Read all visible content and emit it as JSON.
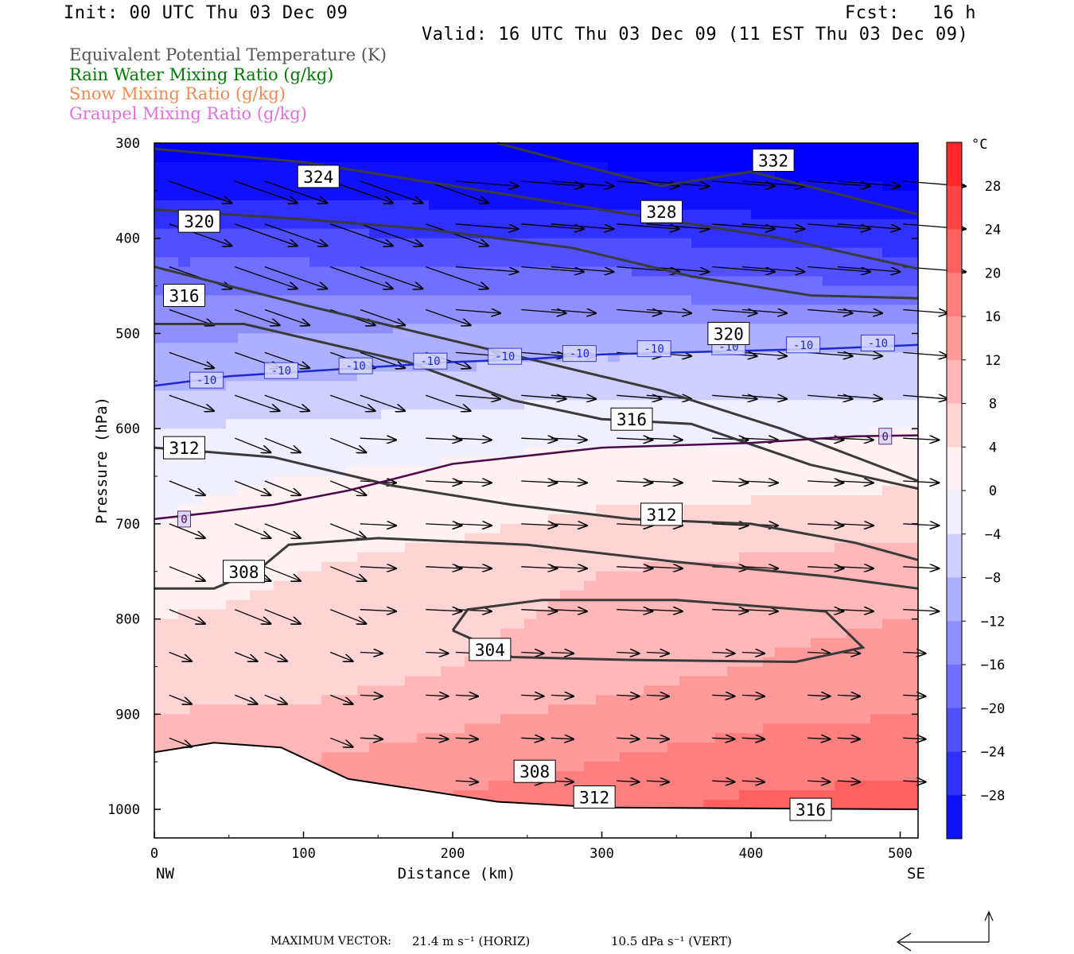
{
  "header": {
    "init": "Init: 00 UTC Thu 03 Dec 09",
    "fcst": "Fcst:   16 h",
    "valid": "Valid: 16 UTC Thu 03 Dec 09 (11 EST Thu 03 Dec 09)"
  },
  "legend": [
    {
      "text": "Equivalent Potential Temperature (K)",
      "color": "#555555"
    },
    {
      "text": "Rain Water Mixing Ratio (g/kg)",
      "color": "#007a00"
    },
    {
      "text": "Snow Mixing Ratio (g/kg)",
      "color": "#f08a50"
    },
    {
      "text": "Graupel Mixing Ratio (g/kg)",
      "color": "#e070e0"
    }
  ],
  "footer": {
    "max_vector_label": "MAXIMUM VECTOR:",
    "horiz": "21.4 m s⁻¹ (HORIZ)",
    "vert": "10.5 dPa s⁻¹ (VERT)"
  },
  "chart_data": {
    "type": "heatmap",
    "xlabel": "Distance (km)",
    "ylabel": "Pressure (hPa)",
    "xlim": [
      0,
      512
    ],
    "ylim": [
      1030,
      300
    ],
    "x_ticks": [
      0,
      100,
      200,
      300,
      400,
      500
    ],
    "y_ticks": [
      300,
      400,
      500,
      600,
      700,
      800,
      900,
      1000
    ],
    "x_end_labels": {
      "left": "NW",
      "right": "SE"
    },
    "colorbar": {
      "unit": "°C",
      "ticks": [
        28,
        24,
        20,
        16,
        12,
        8,
        4,
        0,
        -4,
        -8,
        -12,
        -16,
        -20,
        -24,
        -28
      ],
      "range": [
        -32,
        32
      ]
    },
    "temperature_field": {
      "x": [
        0,
        100,
        200,
        300,
        400,
        512
      ],
      "pressure": [
        300,
        350,
        400,
        450,
        500,
        550,
        600,
        650,
        700,
        750,
        800,
        850,
        900,
        950,
        1000
      ],
      "values": [
        [
          -34,
          -34,
          -34,
          -34,
          -34,
          -34
        ],
        [
          -29,
          -29,
          -30,
          -30,
          -31,
          -32
        ],
        [
          -23,
          -23,
          -24,
          -24,
          -25,
          -26
        ],
        [
          -17,
          -17,
          -18,
          -18,
          -19,
          -20
        ],
        [
          -13,
          -12,
          -11,
          -10,
          -10,
          -10
        ],
        [
          -9,
          -8,
          -7,
          -6,
          -6,
          -6
        ],
        [
          -4,
          -3,
          -2,
          -1,
          -1,
          0
        ],
        [
          -1,
          0,
          1,
          2,
          2,
          3
        ],
        [
          0,
          2,
          3,
          5,
          6,
          7
        ],
        [
          2,
          4,
          6,
          8,
          9,
          10
        ],
        [
          4,
          5,
          7,
          9,
          11,
          12
        ],
        [
          6,
          5,
          8,
          10,
          12,
          14
        ],
        [
          8,
          9,
          11,
          13,
          15,
          16
        ],
        [
          11,
          12,
          14,
          16,
          18,
          19
        ],
        [
          13,
          14,
          17,
          19,
          21,
          22
        ]
      ]
    },
    "terrain_pressure": [
      [
        0,
        940
      ],
      [
        40,
        930
      ],
      [
        85,
        935
      ],
      [
        130,
        968
      ],
      [
        230,
        992
      ],
      [
        300,
        998
      ],
      [
        512,
        1000
      ]
    ],
    "isotherm_labels": [
      {
        "value": "-10",
        "points": [
          [
            0,
            555
          ],
          [
            50,
            545
          ],
          [
            100,
            540
          ],
          [
            150,
            535
          ],
          [
            200,
            530
          ],
          [
            250,
            527
          ],
          [
            300,
            522
          ],
          [
            350,
            520
          ],
          [
            400,
            518
          ],
          [
            450,
            516
          ],
          [
            512,
            512
          ]
        ]
      },
      {
        "value": "0",
        "points": [
          [
            0,
            695
          ],
          [
            40,
            688
          ],
          [
            80,
            680
          ],
          [
            130,
            665
          ],
          [
            200,
            637
          ],
          [
            300,
            620
          ],
          [
            400,
            615
          ],
          [
            470,
            608
          ],
          [
            512,
            607
          ]
        ]
      }
    ],
    "theta_e_labels": [
      "324",
      "332",
      "320",
      "328",
      "316",
      "320",
      "316",
      "312",
      "312",
      "308",
      "304",
      "308",
      "312",
      "316"
    ],
    "theta_e_contours": [
      {
        "level": 324,
        "points": [
          [
            0,
            306
          ],
          [
            100,
            320
          ],
          [
            180,
            340
          ],
          [
            260,
            360
          ],
          [
            340,
            380
          ],
          [
            420,
            400
          ],
          [
            512,
            432
          ]
        ]
      },
      {
        "level": 332,
        "points": [
          [
            230,
            300
          ],
          [
            290,
            325
          ],
          [
            340,
            345
          ],
          [
            400,
            330
          ],
          [
            450,
            350
          ],
          [
            512,
            375
          ]
        ]
      },
      {
        "level": 328,
        "points": [
          [
            0,
            370
          ],
          [
            100,
            380
          ],
          [
            180,
            390
          ],
          [
            280,
            410
          ],
          [
            360,
            440
          ],
          [
            440,
            460
          ],
          [
            512,
            463
          ]
        ]
      },
      {
        "level": 320,
        "points": [
          [
            0,
            430
          ],
          [
            100,
            470
          ],
          [
            180,
            500
          ],
          [
            260,
            530
          ],
          [
            340,
            560
          ],
          [
            420,
            600
          ],
          [
            512,
            655
          ]
        ]
      },
      {
        "level": 316,
        "points": [
          [
            0,
            490
          ],
          [
            60,
            490
          ],
          [
            120,
            512
          ],
          [
            170,
            530
          ],
          [
            240,
            570
          ],
          [
            300,
            590
          ],
          [
            360,
            595
          ],
          [
            440,
            638
          ],
          [
            512,
            663
          ]
        ]
      },
      {
        "level": 312,
        "points": [
          [
            0,
            620
          ],
          [
            80,
            630
          ],
          [
            160,
            660
          ],
          [
            240,
            680
          ],
          [
            320,
            695
          ],
          [
            400,
            700
          ],
          [
            470,
            720
          ],
          [
            512,
            738
          ]
        ]
      },
      {
        "level": 308,
        "points": [
          [
            0,
            768
          ],
          [
            40,
            768
          ],
          [
            70,
            748
          ],
          [
            90,
            722
          ],
          [
            150,
            715
          ],
          [
            250,
            722
          ],
          [
            350,
            740
          ],
          [
            450,
            755
          ],
          [
            512,
            768
          ]
        ]
      },
      {
        "level": 304,
        "points": [
          [
            200,
            812
          ],
          [
            210,
            790
          ],
          [
            260,
            780
          ],
          [
            350,
            780
          ],
          [
            450,
            792
          ],
          [
            475,
            830
          ],
          [
            430,
            845
          ],
          [
            320,
            843
          ],
          [
            240,
            840
          ],
          [
            200,
            812
          ]
        ]
      }
    ],
    "wind_vectors_note": "Horizontal wind/vertical motion vectors shown; maximum vector 21.4 m s-1 (HORIZ), 10.5 dPa s-1 (VERT)"
  }
}
